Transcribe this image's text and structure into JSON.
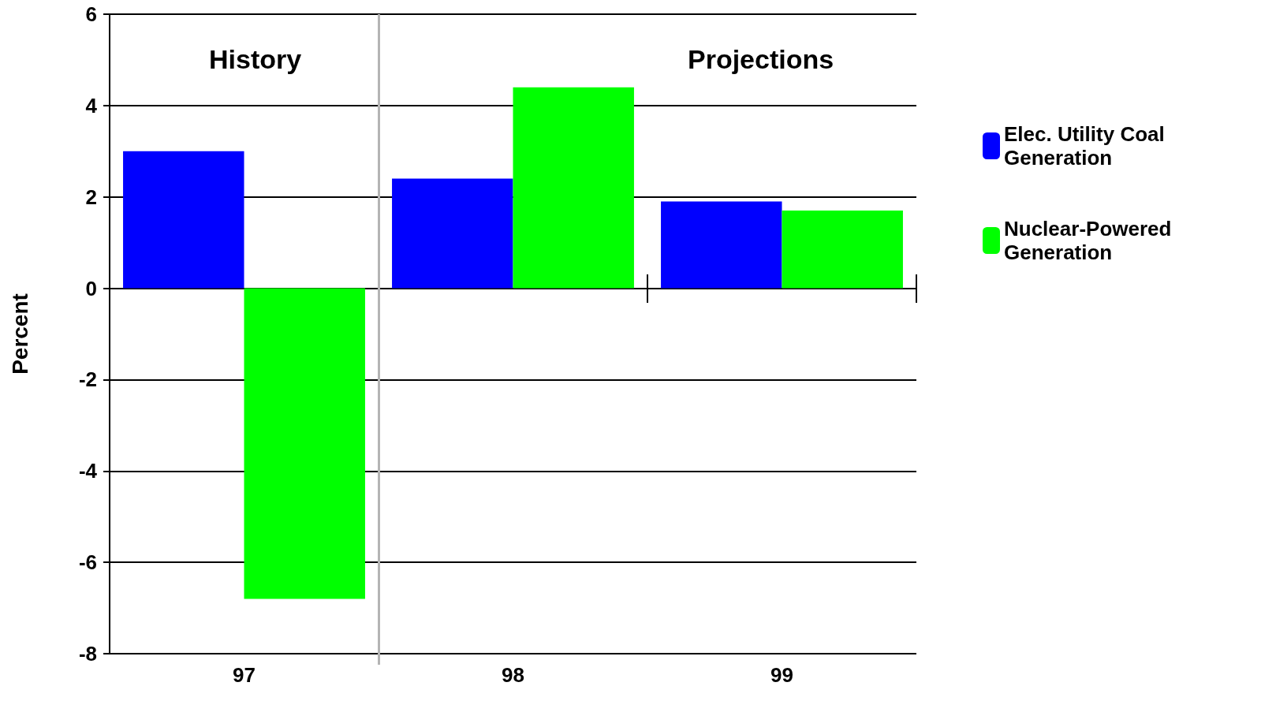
{
  "chart_data": {
    "type": "bar",
    "ylabel": "Percent",
    "categories": [
      "97",
      "98",
      "99"
    ],
    "series": [
      {
        "name": "Elec. Utility Coal Generation",
        "color": "#0000ff",
        "values": [
          3.0,
          2.4,
          1.9
        ]
      },
      {
        "name": "Nuclear-Powered Generation",
        "color": "#00ff00",
        "values": [
          -6.8,
          4.4,
          1.7
        ]
      }
    ],
    "ylim": [
      -8,
      6
    ],
    "yticks": [
      -8,
      -6,
      -4,
      -2,
      0,
      2,
      4,
      6
    ],
    "grid": "y",
    "legend": "right",
    "annotations": [
      "History",
      "Projections"
    ]
  }
}
